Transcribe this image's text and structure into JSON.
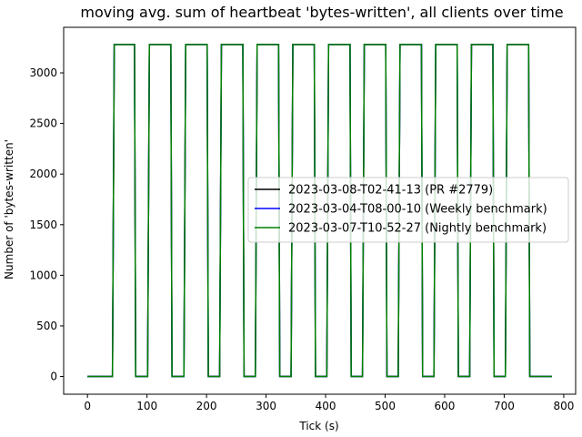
{
  "chart_data": {
    "type": "line",
    "title": "moving avg. sum of heartbeat 'bytes-written', all clients over time",
    "xlabel": "Tick (s)",
    "ylabel": "Number of 'bytes-written'",
    "xlim": [
      -40,
      820
    ],
    "ylim": [
      -175,
      3450
    ],
    "xticks": [
      0,
      100,
      200,
      300,
      400,
      500,
      600,
      700,
      800
    ],
    "yticks": [
      0,
      500,
      1000,
      1500,
      2000,
      2500,
      3000
    ],
    "grid": false,
    "legend_position": "center-right",
    "series": [
      {
        "name": "2023-03-08-T02-41-13 (PR #2779)",
        "color": "#000000",
        "x": [
          0,
          42,
          45,
          79,
          81,
          101,
          104,
          140,
          142,
          162,
          165,
          201,
          203,
          222,
          225,
          261,
          263,
          282,
          285,
          321,
          323,
          342,
          345,
          381,
          383,
          402,
          405,
          441,
          443,
          462,
          465,
          501,
          503,
          522,
          525,
          561,
          563,
          582,
          585,
          621,
          623,
          642,
          645,
          681,
          683,
          702,
          705,
          741,
          743,
          780
        ],
        "y": [
          0,
          0,
          3280,
          3280,
          0,
          0,
          3280,
          3280,
          0,
          0,
          3280,
          3280,
          0,
          0,
          3280,
          3280,
          0,
          0,
          3280,
          3280,
          0,
          0,
          3280,
          3280,
          0,
          0,
          3280,
          3280,
          0,
          0,
          3280,
          3280,
          0,
          0,
          3280,
          3280,
          0,
          0,
          3280,
          3280,
          0,
          0,
          3280,
          3280,
          0,
          0,
          3280,
          3280,
          0,
          0
        ]
      },
      {
        "name": "2023-03-04-T08-00-10 (Weekly benchmark)",
        "color": "#0000ff",
        "x": [
          0,
          42,
          45,
          79,
          81,
          101,
          104,
          140,
          142,
          162,
          165,
          201,
          203,
          222,
          225,
          261,
          263,
          282,
          285,
          321,
          323,
          342,
          345,
          381,
          383,
          402,
          405,
          441,
          443,
          462,
          465,
          501,
          503,
          522,
          525,
          561,
          563,
          582,
          585,
          621,
          623,
          642,
          645,
          681,
          683,
          702,
          705,
          741,
          743,
          780
        ],
        "y": [
          0,
          0,
          3280,
          3280,
          0,
          0,
          3280,
          3280,
          0,
          0,
          3280,
          3280,
          0,
          0,
          3280,
          3280,
          0,
          0,
          3280,
          3280,
          0,
          0,
          3280,
          3280,
          0,
          0,
          3280,
          3280,
          0,
          0,
          3280,
          3280,
          0,
          0,
          3280,
          3280,
          0,
          0,
          3280,
          3280,
          0,
          0,
          3280,
          3280,
          0,
          0,
          3280,
          3280,
          0,
          0
        ]
      },
      {
        "name": "2023-03-07-T10-52-27 (Nightly benchmark)",
        "color": "#008000",
        "x": [
          0,
          42,
          45,
          79,
          81,
          101,
          104,
          140,
          142,
          162,
          165,
          201,
          203,
          222,
          225,
          261,
          263,
          282,
          285,
          321,
          323,
          342,
          345,
          381,
          383,
          402,
          405,
          441,
          443,
          462,
          465,
          501,
          503,
          522,
          525,
          561,
          563,
          582,
          585,
          621,
          623,
          642,
          645,
          681,
          683,
          702,
          705,
          741,
          743,
          780
        ],
        "y": [
          0,
          0,
          3280,
          3280,
          0,
          0,
          3280,
          3280,
          0,
          0,
          3280,
          3280,
          0,
          0,
          3280,
          3280,
          0,
          0,
          3280,
          3280,
          0,
          0,
          3280,
          3280,
          0,
          0,
          3280,
          3280,
          0,
          0,
          3280,
          3280,
          0,
          0,
          3280,
          3280,
          0,
          0,
          3280,
          3280,
          0,
          0,
          3280,
          3280,
          0,
          0,
          3280,
          3280,
          0,
          0
        ]
      }
    ]
  }
}
